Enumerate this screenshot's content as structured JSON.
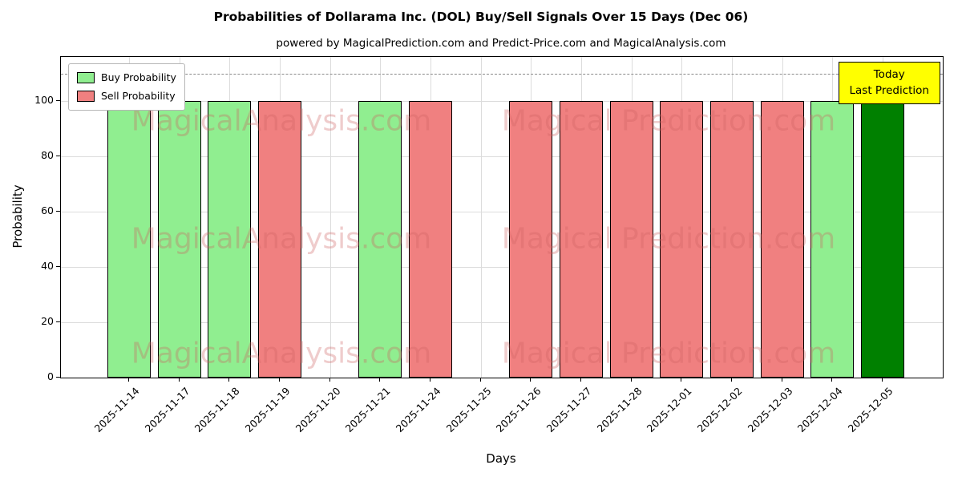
{
  "chart": {
    "title": "Probabilities of Dollarama Inc. (DOL) Buy/Sell Signals Over 15 Days (Dec 06)",
    "subtitle": "powered by MagicalPrediction.com and Predict-Price.com and MagicalAnalysis.com",
    "xlabel": "Days",
    "ylabel": "Probability"
  },
  "legend": [
    {
      "label": "Buy Probability",
      "color": "#90EE90"
    },
    {
      "label": "Sell Probability",
      "color": "#F08080"
    }
  ],
  "annotation": {
    "lines": [
      "Today",
      "Last Prediction"
    ],
    "background": "#ffff00"
  },
  "watermarks": {
    "left": "MagicalAnalysis.com",
    "right": "Magical Prediction.com"
  },
  "chart_data": {
    "type": "bar",
    "title": "Probabilities of Dollarama Inc. (DOL) Buy/Sell Signals Over 15 Days (Dec 06)",
    "xlabel": "Days",
    "ylabel": "Probability",
    "categories": [
      "2025-11-14",
      "2025-11-17",
      "2025-11-18",
      "2025-11-19",
      "2025-11-20",
      "2025-11-21",
      "2025-11-24",
      "2025-11-25",
      "2025-11-26",
      "2025-11-27",
      "2025-11-28",
      "2025-12-01",
      "2025-12-02",
      "2025-12-03",
      "2025-12-04",
      "2025-12-05"
    ],
    "series": [
      {
        "name": "Buy Probability",
        "color": "#90EE90",
        "values": [
          100,
          100,
          100,
          0,
          0,
          100,
          0,
          0,
          0,
          0,
          0,
          0,
          0,
          0,
          100,
          0
        ]
      },
      {
        "name": "Sell Probability",
        "color": "#F08080",
        "values": [
          0,
          0,
          0,
          100,
          0,
          0,
          100,
          0,
          100,
          100,
          100,
          100,
          100,
          100,
          0,
          0
        ]
      },
      {
        "name": "Today Last Prediction",
        "color": "#008000",
        "values": [
          0,
          0,
          0,
          0,
          0,
          0,
          0,
          0,
          0,
          0,
          0,
          0,
          0,
          0,
          0,
          100
        ]
      }
    ],
    "ylim": [
      0,
      116
    ],
    "yticks": [
      0,
      20,
      40,
      60,
      80,
      100
    ],
    "dashed_line_y": 110,
    "grid": true,
    "legend_position": "upper left"
  }
}
